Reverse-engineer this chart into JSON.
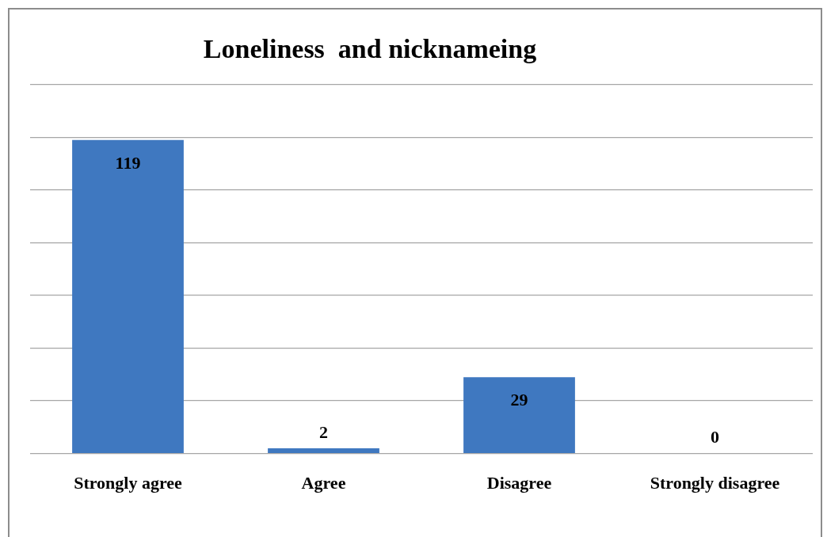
{
  "chart_data": {
    "type": "bar",
    "title": "Loneliness  and nicknameing",
    "categories": [
      "Strongly agree",
      "Agree",
      "Disagree",
      "Strongly disagree"
    ],
    "values": [
      119,
      2,
      29,
      0
    ],
    "color": "#3f78c0",
    "ylim": [
      0,
      140
    ],
    "yticks": [
      {
        "value": 0,
        "label": null
      },
      {
        "value": 20,
        "label": null
      },
      {
        "value": 40,
        "label": null
      },
      {
        "value": 60,
        "label": null
      },
      {
        "value": 80,
        "label": null
      },
      {
        "value": 100,
        "label": null
      },
      {
        "value": 120,
        "label": null
      },
      {
        "value": 140,
        "label": null
      }
    ],
    "grid": "y",
    "tick_labels": "x",
    "data_labels": true
  }
}
